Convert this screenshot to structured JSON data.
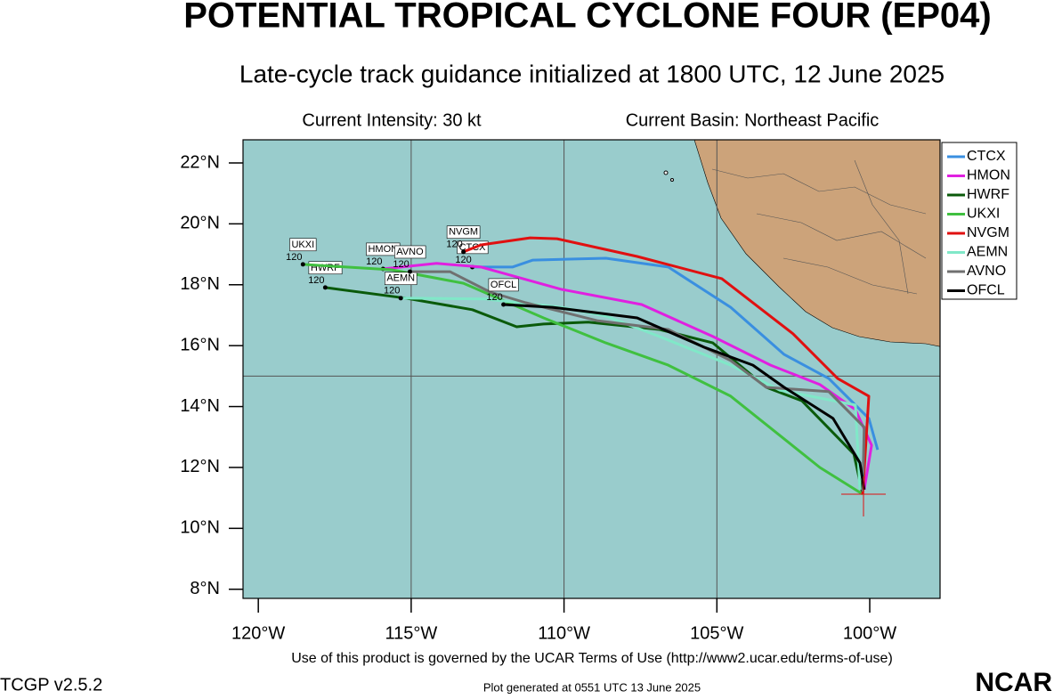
{
  "header": {
    "title": "POTENTIAL TROPICAL CYCLONE FOUR (EP04)",
    "subtitle": "Late-cycle track guidance initialized at 1800 UTC, 12 June 2025",
    "intensity": "Current Intensity: 30 kt",
    "basin": "Current Basin: Northeast Pacific"
  },
  "footer": {
    "terms": "Use of this product is governed by the UCAR Terms of Use (http://www2.ucar.edu/terms-of-use)",
    "version": "TCGP v2.5.2",
    "generated": "Plot generated at 0551 UTC   13 June 2025",
    "logo": "NCAR"
  },
  "chart_data": {
    "type": "line",
    "xlim": [
      -120.5,
      -97.7
    ],
    "ylim": [
      7.7,
      22.76
    ],
    "xticks": [
      {
        "value": -120,
        "label": "120°W"
      },
      {
        "value": -115,
        "label": "115°W"
      },
      {
        "value": -110,
        "label": "110°W"
      },
      {
        "value": -105,
        "label": "105°W"
      },
      {
        "value": -100,
        "label": "100°W"
      }
    ],
    "yticks": [
      {
        "value": 8,
        "label": "8°N"
      },
      {
        "value": 10,
        "label": "10°N"
      },
      {
        "value": 12,
        "label": "12°N"
      },
      {
        "value": 14,
        "label": "14°N"
      },
      {
        "value": 16,
        "label": "16°N"
      },
      {
        "value": 18,
        "label": "18°N"
      },
      {
        "value": 20,
        "label": "20°N"
      },
      {
        "value": 22,
        "label": "22°N"
      }
    ],
    "grid_x": [
      -115,
      -110,
      -105
    ],
    "grid_y": [
      15
    ],
    "end_label": "120",
    "series": [
      {
        "name": "CTCX",
        "color": "#3a8fe0",
        "x": [
          -99.74,
          -100.03,
          -101.34,
          -102.8,
          -104.55,
          -106.59,
          -108.63,
          -111.02,
          -111.69,
          -113.0
        ],
        "values": [
          12.58,
          13.61,
          14.92,
          15.71,
          17.26,
          18.58,
          18.87,
          18.81,
          18.58,
          18.58
        ]
      },
      {
        "name": "HMON",
        "color": "#e020e0",
        "x": [
          -100.18,
          -99.94,
          -100.47,
          -101.63,
          -103.24,
          -105.13,
          -107.46,
          -110.09,
          -112.71,
          -114.17,
          -115.92
        ],
        "values": [
          11.27,
          12.73,
          13.9,
          14.72,
          15.36,
          16.3,
          17.35,
          17.85,
          18.58,
          18.7,
          18.52
        ]
      },
      {
        "name": "HWRF",
        "color": "#0a5a0a",
        "x": [
          -100.23,
          -100.52,
          -102.22,
          -103.38,
          -105.13,
          -106.88,
          -109.21,
          -110.67,
          -111.55,
          -113.0,
          -115.19,
          -117.81
        ],
        "values": [
          11.12,
          12.44,
          14.19,
          14.63,
          16.09,
          16.53,
          16.77,
          16.71,
          16.62,
          17.18,
          17.56,
          17.91
        ]
      },
      {
        "name": "UKXI",
        "color": "#40c040",
        "x": [
          -100.23,
          -101.63,
          -104.55,
          -106.59,
          -108.63,
          -110.67,
          -113.29,
          -115.63,
          -118.54
        ],
        "values": [
          11.12,
          12.0,
          14.34,
          15.36,
          16.09,
          16.91,
          18.05,
          18.49,
          18.67
        ]
      },
      {
        "name": "NVGM",
        "color": "#e01010",
        "x": [
          -100.23,
          -100.03,
          -101.05,
          -102.51,
          -104.84,
          -107.61,
          -110.23,
          -111.11,
          -112.71,
          -113.29
        ],
        "values": [
          11.12,
          14.34,
          14.92,
          16.39,
          18.2,
          18.93,
          19.51,
          19.54,
          19.31,
          19.08
        ]
      },
      {
        "name": "AEMN",
        "color": "#80e8c8",
        "x": [
          -100.32,
          -100.47,
          -102.94,
          -104.55,
          -106.88,
          -108.63,
          -110.09,
          -112.57,
          -115.34
        ],
        "values": [
          11.27,
          14.05,
          14.54,
          15.36,
          16.3,
          16.97,
          17.26,
          17.53,
          17.56
        ]
      },
      {
        "name": "AVNO",
        "color": "#707070",
        "x": [
          -100.23,
          -100.18,
          -101.34,
          -103.38,
          -104.55,
          -106.59,
          -108.92,
          -111.25,
          -112.42,
          -113.73,
          -115.04
        ],
        "values": [
          11.21,
          13.32,
          14.49,
          14.63,
          15.51,
          16.53,
          16.82,
          17.41,
          17.76,
          18.43,
          18.43
        ]
      },
      {
        "name": "OFCL",
        "color": "#000000",
        "x": [
          -100.18,
          -100.32,
          -101.2,
          -102.8,
          -103.82,
          -105.42,
          -107.61,
          -110.38,
          -111.98
        ],
        "values": [
          11.27,
          12.15,
          13.61,
          14.63,
          15.36,
          15.95,
          16.91,
          17.26,
          17.35
        ]
      }
    ]
  }
}
